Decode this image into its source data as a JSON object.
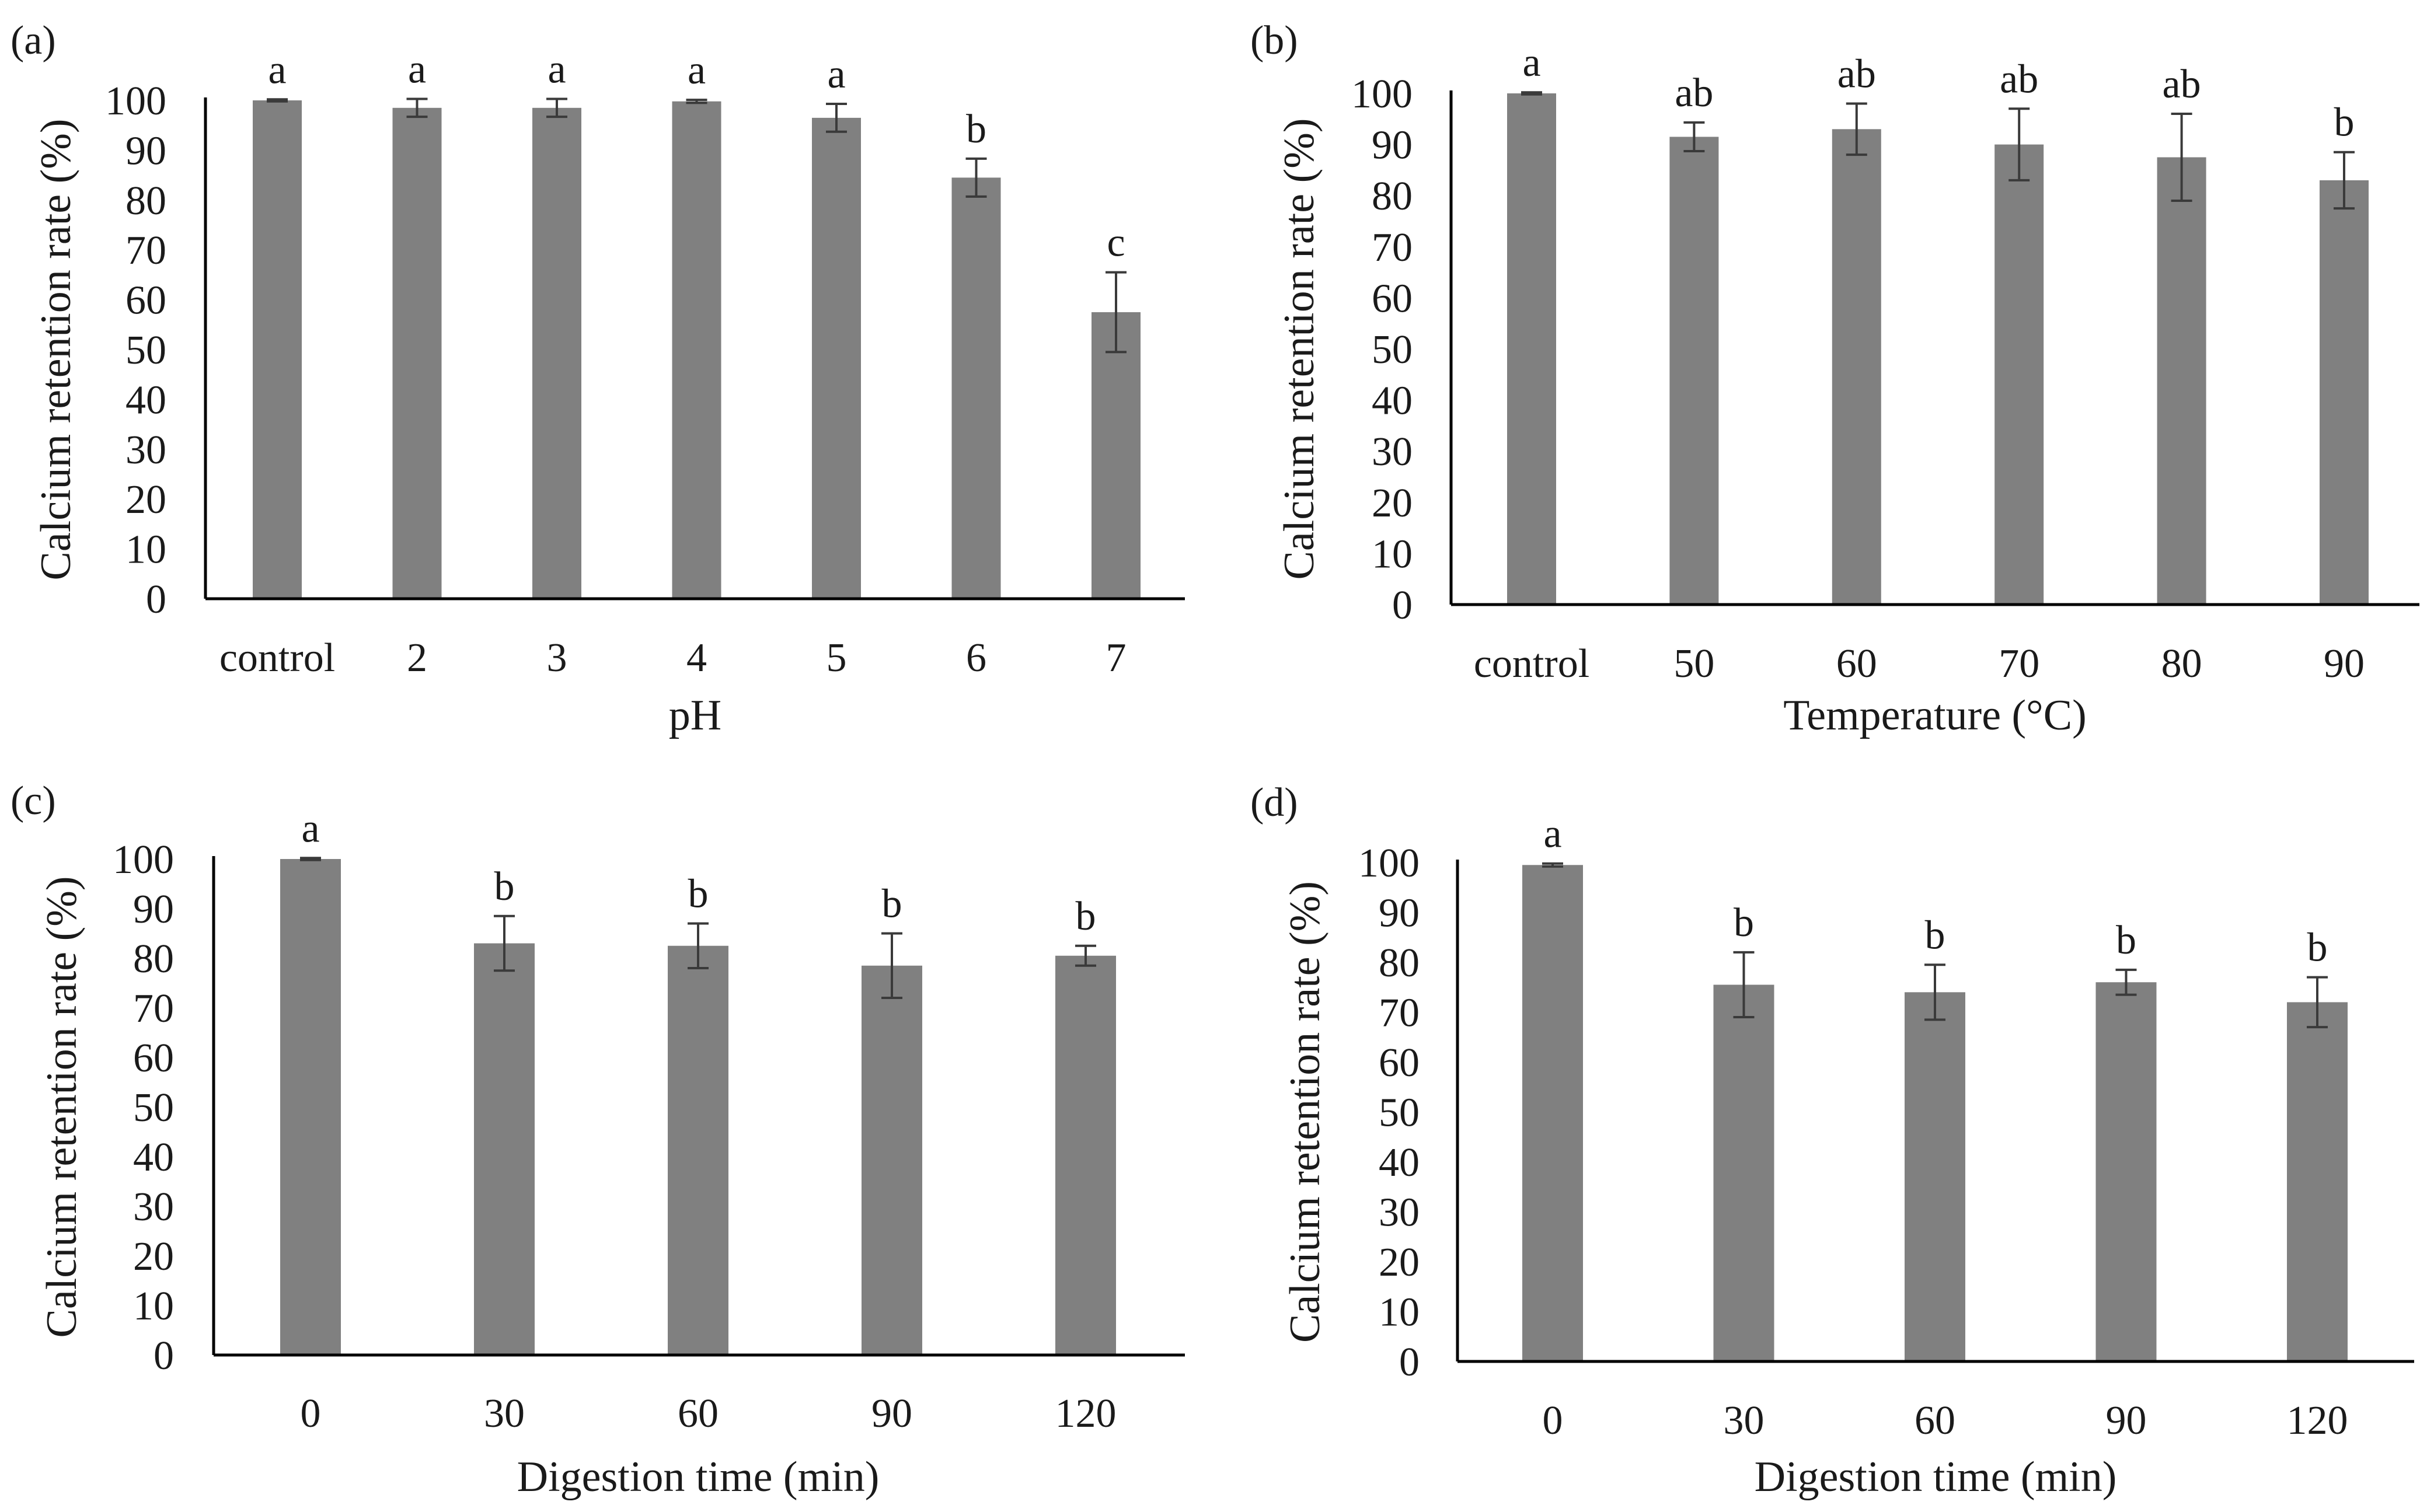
{
  "colors": {
    "bar": "#808080",
    "axis": "#000000",
    "error_bar": "#3a3a3a",
    "text": "#1a1a1a"
  },
  "chart_data": [
    {
      "type": "bar",
      "panel_label": "(a)",
      "xlabel": "pH",
      "ylabel": "Calcium retention rate (%)",
      "ylim": [
        0,
        100
      ],
      "yticks": [
        0,
        10,
        20,
        30,
        40,
        50,
        60,
        70,
        80,
        90,
        100
      ],
      "categories": [
        "control",
        "2",
        "3",
        "4",
        "5",
        "6",
        "7"
      ],
      "values": [
        100,
        98.5,
        98.5,
        99.8,
        96.5,
        84.5,
        57.5
      ],
      "errors": [
        0.2,
        1.8,
        1.8,
        0.3,
        2.8,
        3.8,
        8
      ],
      "letters": [
        "a",
        "a",
        "a",
        "a",
        "a",
        "b",
        "c"
      ]
    },
    {
      "type": "bar",
      "panel_label": "(b)",
      "xlabel": "Temperature (°C)",
      "ylabel": "Calcium retention rate (%)",
      "ylim": [
        0,
        100
      ],
      "yticks": [
        0,
        10,
        20,
        30,
        40,
        50,
        60,
        70,
        80,
        90,
        100
      ],
      "categories": [
        "control",
        "50",
        "60",
        "70",
        "80",
        "90"
      ],
      "values": [
        100,
        91.5,
        93,
        90,
        87.5,
        83
      ],
      "errors": [
        0.2,
        2.8,
        5,
        7,
        8.5,
        5.5
      ],
      "letters": [
        "a",
        "ab",
        "ab",
        "ab",
        "ab",
        "b"
      ]
    },
    {
      "type": "bar",
      "panel_label": "(c)",
      "xlabel": "Digestion time (min)",
      "ylabel": "Calcium retention rate (%)",
      "ylim": [
        0,
        100
      ],
      "yticks": [
        0,
        10,
        20,
        30,
        40,
        50,
        60,
        70,
        80,
        90,
        100
      ],
      "categories": [
        "0",
        "30",
        "60",
        "90",
        "120"
      ],
      "values": [
        100,
        83,
        82.5,
        78.5,
        80.5
      ],
      "errors": [
        0.2,
        5.5,
        4.5,
        6.5,
        2
      ],
      "letters": [
        "a",
        "b",
        "b",
        "b",
        "b"
      ]
    },
    {
      "type": "bar",
      "panel_label": "(d)",
      "xlabel": "Digestion time (min)",
      "ylabel": "Calcium retention rate (%)",
      "ylim": [
        0,
        100
      ],
      "yticks": [
        0,
        10,
        20,
        30,
        40,
        50,
        60,
        70,
        80,
        90,
        100
      ],
      "categories": [
        "0",
        "30",
        "60",
        "90",
        "120"
      ],
      "values": [
        99.5,
        75.5,
        74,
        76,
        72
      ],
      "errors": [
        0.3,
        6.5,
        5.5,
        2.5,
        5
      ],
      "letters": [
        "a",
        "b",
        "b",
        "b",
        "b"
      ]
    }
  ]
}
